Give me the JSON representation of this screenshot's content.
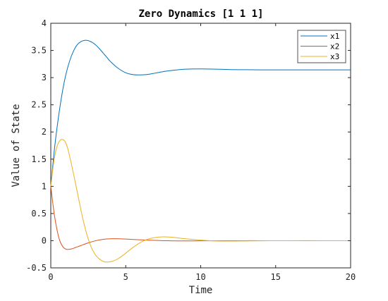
{
  "chart_data": {
    "type": "line",
    "title": "Zero Dynamics [1 1 1]",
    "xlabel": "Time",
    "ylabel": "Value of State",
    "xlim": [
      0,
      20
    ],
    "ylim": [
      -0.5,
      4
    ],
    "xticks": [
      0,
      5,
      10,
      15,
      20
    ],
    "xtick_labels": [
      "0",
      "5",
      "10",
      "15",
      "20"
    ],
    "yticks": [
      -0.5,
      0,
      0.5,
      1,
      1.5,
      2,
      2.5,
      3,
      3.5,
      4
    ],
    "ytick_labels": [
      "-0.5",
      "0",
      "0.5",
      "1",
      "1.5",
      "2",
      "2.5",
      "3",
      "3.5",
      "4"
    ],
    "grid": false,
    "legend_position": "top-right",
    "series": [
      {
        "name": "x1",
        "color": "#0072BD",
        "x": [
          0,
          0.25,
          0.5,
          0.75,
          1,
          1.25,
          1.5,
          1.75,
          2,
          2.25,
          2.5,
          2.75,
          3,
          3.25,
          3.5,
          3.75,
          4,
          4.5,
          5,
          5.5,
          6,
          6.5,
          7,
          7.5,
          8,
          9,
          10,
          11,
          12,
          13,
          14,
          15,
          16,
          17,
          18,
          19,
          20
        ],
        "y": [
          1.0,
          1.7,
          2.25,
          2.7,
          3.05,
          3.3,
          3.48,
          3.6,
          3.66,
          3.685,
          3.68,
          3.65,
          3.6,
          3.53,
          3.45,
          3.37,
          3.29,
          3.17,
          3.09,
          3.055,
          3.05,
          3.06,
          3.085,
          3.11,
          3.13,
          3.155,
          3.16,
          3.155,
          3.148,
          3.145,
          3.143,
          3.143,
          3.142,
          3.142,
          3.142,
          3.142,
          3.142
        ]
      },
      {
        "name": "x2",
        "color": "#D95319",
        "x": [
          0,
          0.2,
          0.4,
          0.6,
          0.8,
          1,
          1.2,
          1.4,
          1.6,
          1.8,
          2,
          2.5,
          3,
          3.5,
          4,
          4.5,
          5,
          6,
          7,
          8,
          9,
          10,
          11,
          12,
          13,
          14,
          16,
          18,
          20
        ],
        "y": [
          1.0,
          0.55,
          0.22,
          0.0,
          -0.11,
          -0.155,
          -0.16,
          -0.15,
          -0.13,
          -0.11,
          -0.09,
          -0.04,
          0.0,
          0.025,
          0.035,
          0.035,
          0.03,
          0.015,
          0.005,
          -0.002,
          -0.004,
          -0.003,
          -0.002,
          -0.001,
          0.0,
          0.0,
          0.0,
          0.0,
          0.0
        ]
      },
      {
        "name": "x3",
        "color": "#EDB120",
        "x": [
          0,
          0.2,
          0.4,
          0.6,
          0.8,
          1,
          1.2,
          1.5,
          1.8,
          2.1,
          2.4,
          2.7,
          3,
          3.3,
          3.6,
          3.9,
          4.2,
          4.5,
          5,
          5.5,
          6,
          6.5,
          7,
          7.5,
          8,
          8.5,
          9,
          10,
          11,
          12,
          13,
          14,
          16,
          18,
          20
        ],
        "y": [
          1.0,
          1.45,
          1.72,
          1.84,
          1.86,
          1.8,
          1.62,
          1.25,
          0.85,
          0.45,
          0.12,
          -0.12,
          -0.27,
          -0.35,
          -0.39,
          -0.39,
          -0.37,
          -0.33,
          -0.23,
          -0.12,
          -0.03,
          0.03,
          0.06,
          0.07,
          0.065,
          0.05,
          0.035,
          0.01,
          -0.005,
          -0.008,
          -0.005,
          -0.002,
          0.0,
          0.0,
          0.0
        ]
      }
    ]
  }
}
